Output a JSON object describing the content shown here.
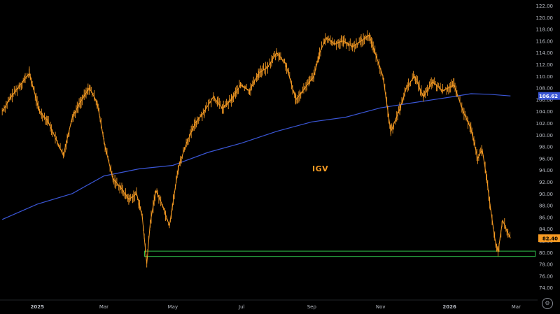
{
  "colors": {
    "background": "#000000",
    "price": "#f59a23",
    "moving_average": "#3a56d6",
    "support_box": "#2fbf4a",
    "axis_text": "#b8bcc4",
    "price_badge_bg": "#f59a23",
    "price_badge_text": "#000000",
    "ma_badge_bg": "#3a56d6",
    "ma_badge_text": "#ffffff"
  },
  "chart_data": {
    "type": "line",
    "symbol": "IGV",
    "title": "",
    "xlabel": "",
    "ylabel": "",
    "grid": false,
    "ylim": [
      72,
      122
    ],
    "y_ticks": [
      74,
      76,
      78,
      80,
      82,
      84,
      86,
      88,
      90,
      92,
      94,
      96,
      98,
      100,
      102,
      104,
      106,
      108,
      110,
      112,
      114,
      116,
      118,
      120,
      122
    ],
    "y_tick_labels": [
      "74.00",
      "76.00",
      "78.00",
      "80.00",
      "82.00",
      "84.00",
      "86.00",
      "88.00",
      "90.00",
      "92.00",
      "94.00",
      "96.00",
      "98.00",
      "100.00",
      "102.00",
      "104.00",
      "106.00",
      "108.00",
      "110.00",
      "112.00",
      "114.00",
      "116.00",
      "118.00",
      "120.00",
      "122.00"
    ],
    "xlim": [
      "2024-11-29",
      "2026-03-20"
    ],
    "x_ticks": [
      "2025-01-01",
      "2025-03-01",
      "2025-05-01",
      "2025-07-01",
      "2025-09-01",
      "2025-11-01",
      "2026-01-01",
      "2026-03-01"
    ],
    "x_tick_labels": [
      "2025",
      "Mar",
      "May",
      "Jul",
      "Sep",
      "Nov",
      "2026",
      "Mar"
    ],
    "series": [
      {
        "render": "line",
        "x": [
          "2024-12-01",
          "2024-12-09",
          "2024-12-17",
          "2024-12-25",
          "2025-01-03",
          "2025-01-10",
          "2025-01-17",
          "2025-01-24",
          "2025-02-01",
          "2025-02-08",
          "2025-02-16",
          "2025-02-23",
          "2025-03-02",
          "2025-03-09",
          "2025-03-16",
          "2025-03-23",
          "2025-03-30",
          "2025-04-04",
          "2025-04-08",
          "2025-04-11",
          "2025-04-16",
          "2025-04-22",
          "2025-04-28",
          "2025-05-06",
          "2025-05-13",
          "2025-05-21",
          "2025-05-29",
          "2025-06-06",
          "2025-06-14",
          "2025-06-22",
          "2025-06-30",
          "2025-07-08",
          "2025-07-16",
          "2025-07-24",
          "2025-08-01",
          "2025-08-09",
          "2025-08-18",
          "2025-08-26",
          "2025-09-03",
          "2025-09-08",
          "2025-09-14",
          "2025-09-21",
          "2025-09-29",
          "2025-10-07",
          "2025-10-15",
          "2025-10-22",
          "2025-10-27",
          "2025-11-03",
          "2025-11-10",
          "2025-11-18",
          "2025-11-24",
          "2025-12-01",
          "2025-12-09",
          "2025-12-17",
          "2025-12-26",
          "2026-01-05",
          "2026-01-13",
          "2026-01-20",
          "2026-01-26",
          "2026-01-30",
          "2026-02-03",
          "2026-02-06",
          "2026-02-10",
          "2026-02-13",
          "2026-02-17",
          "2026-02-20",
          "2026-02-24"
        ],
        "values": [
          104.0,
          106.5,
          108.5,
          110.5,
          104.0,
          102.5,
          99.5,
          96.5,
          103.0,
          105.5,
          108.0,
          105.5,
          98.0,
          92.5,
          91.0,
          89.0,
          90.0,
          86.0,
          78.0,
          85.0,
          90.5,
          88.0,
          84.5,
          94.5,
          98.5,
          102.0,
          104.0,
          106.5,
          104.5,
          106.0,
          108.5,
          107.5,
          110.5,
          111.5,
          114.0,
          112.0,
          106.0,
          108.0,
          110.0,
          114.0,
          116.5,
          115.5,
          116.0,
          115.0,
          116.0,
          117.0,
          114.0,
          110.0,
          100.5,
          104.5,
          108.0,
          110.0,
          106.5,
          109.0,
          107.5,
          108.5,
          104.0,
          101.0,
          96.0,
          97.5,
          92.5,
          88.0,
          82.5,
          80.0,
          85.5,
          84.0,
          82.4
        ]
      },
      {
        "name": "",
        "render": "line",
        "x": [
          "2024-12-01",
          "2025-01-01",
          "2025-02-01",
          "2025-03-01",
          "2025-04-01",
          "2025-05-01",
          "2025-06-01",
          "2025-07-01",
          "2025-08-01",
          "2025-09-01",
          "2025-10-01",
          "2025-11-01",
          "2025-12-01",
          "2026-01-01",
          "2026-01-20",
          "2026-02-05",
          "2026-02-24"
        ],
        "values": [
          85.6,
          88.2,
          90.0,
          93.0,
          94.2,
          94.8,
          97.0,
          98.6,
          100.6,
          102.2,
          103.0,
          104.6,
          105.5,
          106.4,
          107.0,
          106.9,
          106.62
        ]
      }
    ],
    "support_zone": {
      "y_from": 79.3,
      "y_to": 80.2,
      "x_from": "2025-04-06",
      "x_to": "2026-03-18"
    },
    "last_values": {
      "price": {
        "value": 82.4,
        "label": "82.40"
      },
      "moving_average": {
        "value": 106.62,
        "label": "106.62"
      }
    }
  },
  "chart_controls": {
    "settings_glyph": "⚙",
    "settings_icon": "gear-icon"
  }
}
